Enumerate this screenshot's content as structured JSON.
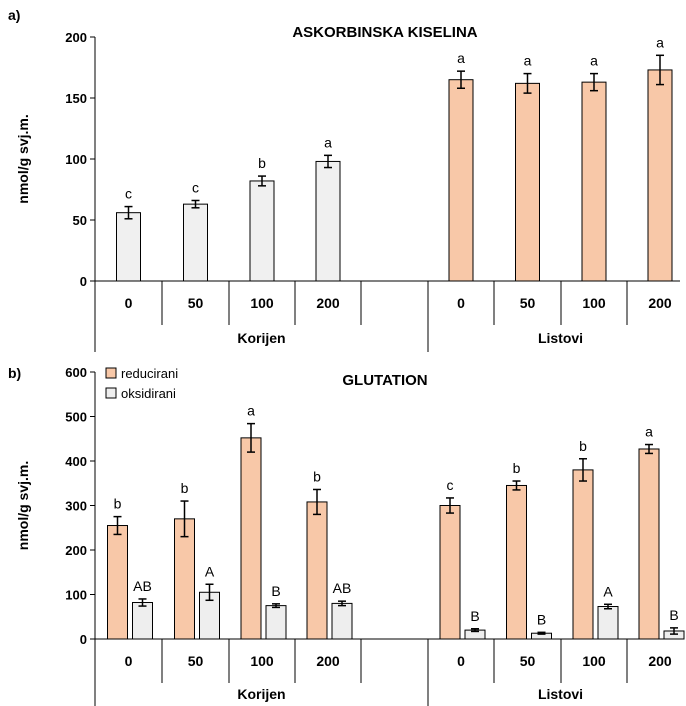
{
  "colors": {
    "reduced": "#f8c8a8",
    "oxidized": "#eeeeee",
    "ascorbic": "#f0f0f0",
    "edge": "#000000"
  },
  "chart_data": [
    {
      "type": "bar",
      "panel_label": "a)",
      "title": "ASKORBINSKA KISELINA",
      "ylabel": "nmol/g svj.m.",
      "ylim": [
        0,
        200
      ],
      "yticks": [
        "0",
        "50",
        "100",
        "150",
        "200"
      ],
      "groups": [
        "Korijen",
        "Listovi"
      ],
      "categories": [
        "0",
        "50",
        "100",
        "200",
        "",
        "0",
        "50",
        "100",
        "200"
      ],
      "series": [
        {
          "values": [
            56,
            63,
            82,
            98,
            null,
            165,
            162,
            163,
            173
          ],
          "errors": [
            5,
            3,
            4,
            5,
            null,
            7,
            8,
            7,
            12
          ],
          "letters": [
            "c",
            "c",
            "b",
            "a",
            "",
            "a",
            "a",
            "a",
            "a"
          ]
        }
      ]
    },
    {
      "type": "bar",
      "panel_label": "b)",
      "title": "GLUTATION",
      "ylabel": "nmol/g svj.m.",
      "ylim": [
        0,
        600
      ],
      "yticks": [
        "0",
        "100",
        "200",
        "300",
        "400",
        "500",
        "600"
      ],
      "groups": [
        "Korijen",
        "Listovi"
      ],
      "categories": [
        "0",
        "50",
        "100",
        "200",
        "",
        "0",
        "50",
        "100",
        "200"
      ],
      "legend": [
        "reducirani",
        "oksidirani"
      ],
      "series": [
        {
          "name": "reducirani",
          "values": [
            255,
            270,
            452,
            308,
            null,
            300,
            345,
            380,
            427
          ],
          "errors": [
            20,
            40,
            32,
            28,
            null,
            17,
            10,
            25,
            10
          ],
          "letters": [
            "b",
            "b",
            "a",
            "b",
            "",
            "c",
            "b",
            "b",
            "a"
          ]
        },
        {
          "name": "oksidirani",
          "values": [
            82,
            105,
            75,
            80,
            null,
            20,
            13,
            73,
            18
          ],
          "errors": [
            8,
            18,
            4,
            5,
            null,
            3,
            2,
            5,
            7
          ],
          "letters": [
            "AB",
            "A",
            "B",
            "AB",
            "",
            "B",
            "B",
            "A",
            "B"
          ]
        }
      ]
    }
  ]
}
